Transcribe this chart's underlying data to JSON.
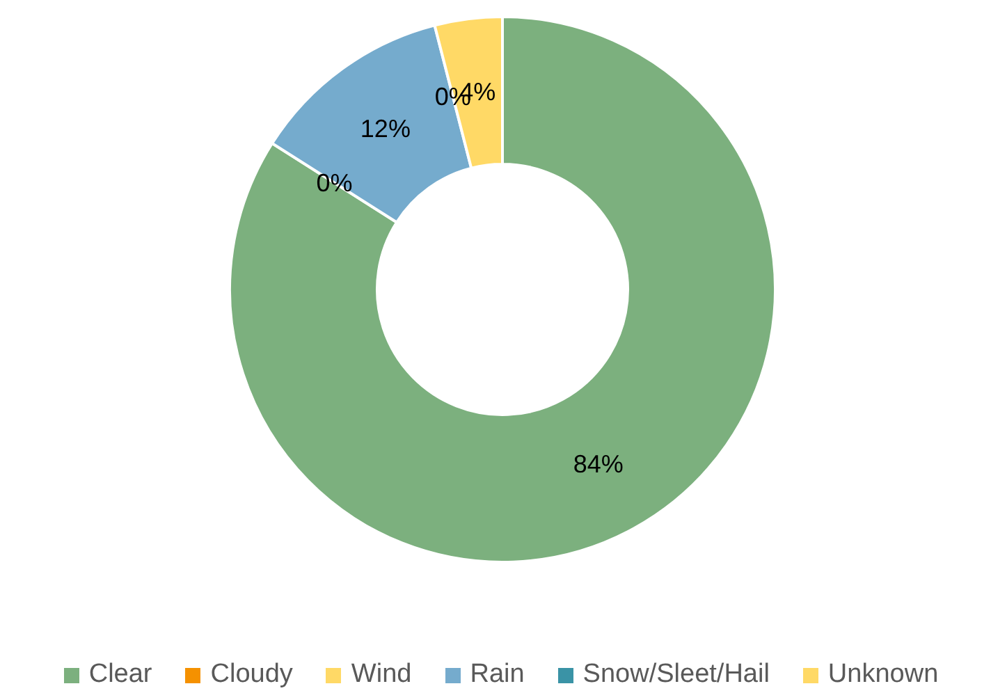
{
  "chart_data": {
    "type": "donut",
    "categories": [
      "Clear",
      "Cloudy",
      "Wind",
      "Rain",
      "Snow/Sleet/Hail",
      "Unknown"
    ],
    "values": [
      84,
      0,
      0,
      12,
      0,
      4
    ],
    "colors": [
      "#7cb07e",
      "#f59100",
      "#ffd966",
      "#75abcd",
      "#3a93a6",
      "#ffd966"
    ],
    "value_labels": [
      "84%",
      "0%",
      null,
      "12%",
      "0%",
      "4%"
    ],
    "legend": "bottom"
  }
}
